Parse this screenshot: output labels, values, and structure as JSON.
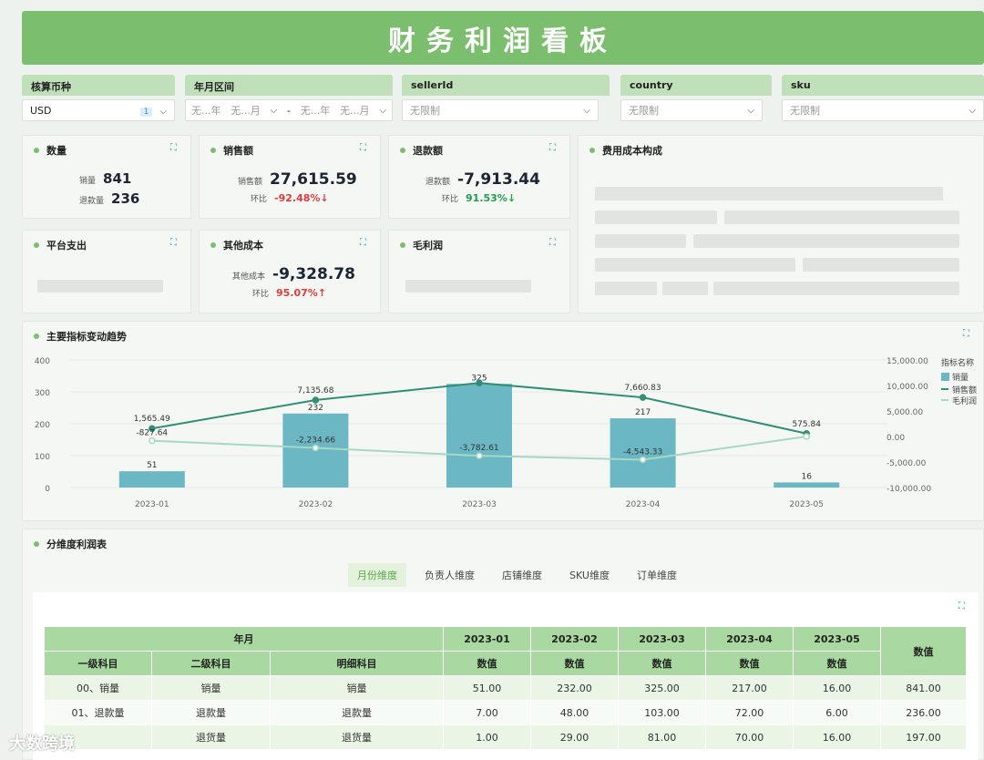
{
  "title": "财务利润看板",
  "filters": [
    {
      "label": "核算币种",
      "value": "USD",
      "badge": "1"
    },
    {
      "label": "年月区间",
      "from_year": "无...年",
      "from_month": "无...月",
      "sep": "-",
      "to_year": "无...年",
      "to_month": "无...月"
    },
    {
      "label": "sellerId",
      "placeholder": "无限制"
    },
    {
      "label": "country",
      "placeholder": "无限制"
    },
    {
      "label": "sku",
      "placeholder": "无限制"
    }
  ],
  "cards": {
    "quantity": {
      "title": "数量",
      "sales_label": "销量",
      "sales_value": "841",
      "refund_label": "退款量",
      "refund_value": "236"
    },
    "revenue": {
      "title": "销售额",
      "label": "销售额",
      "value": "27,615.59",
      "mom_label": "环比",
      "mom_value": "-92.48%",
      "mom_arrow": "↓"
    },
    "refund": {
      "title": "退款额",
      "label": "退款额",
      "value": "-7,913.44",
      "mom_label": "环比",
      "mom_value": "91.53%",
      "mom_arrow": "↓"
    },
    "cost_structure": {
      "title": "费用成本构成"
    },
    "platform": {
      "title": "平台支出"
    },
    "other_cost": {
      "title": "其他成本",
      "label": "其他成本",
      "value": "-9,328.78",
      "mom_label": "环比",
      "mom_value": "95.07%",
      "mom_arrow": "↑"
    },
    "gross_profit": {
      "title": "毛利润"
    }
  },
  "chart_title": "主要指标变动趋势",
  "chart_data": {
    "type": "bar",
    "categories": [
      "2023-01",
      "2023-02",
      "2023-03",
      "2023-04",
      "2023-05"
    ],
    "series": [
      {
        "name": "销量",
        "kind": "bar",
        "axis": "left",
        "values": [
          51,
          232,
          325,
          217,
          16
        ],
        "labels": [
          "51",
          "232",
          "325",
          "217",
          "16"
        ],
        "color": "#6bb8c4"
      },
      {
        "name": "销售额",
        "kind": "line",
        "axis": "right",
        "values": [
          1565.49,
          7135.68,
          10500,
          7660.83,
          575.84
        ],
        "labels": [
          "1,565.49",
          "7,135.68",
          "",
          "7,660.83",
          "575.84"
        ],
        "color": "#2f8f76"
      },
      {
        "name": "毛利润",
        "kind": "line",
        "axis": "right",
        "values": [
          -827.64,
          -2234.66,
          -3782.61,
          -4543.33,
          0
        ],
        "labels": [
          "-827.64",
          "-2,234.66",
          "-3,782.61",
          "-4,543.33",
          ""
        ],
        "color": "#a7d8c4"
      }
    ],
    "left_ticks": [
      "400",
      "300",
      "200",
      "100",
      "0"
    ],
    "right_ticks": [
      "15,000.00",
      "10,000.00",
      "5,000.00",
      "0.00",
      "-5,000.00",
      "-10,000.00"
    ],
    "ylim_left": [
      0,
      400
    ],
    "ylim_right": [
      -10000,
      15000
    ],
    "legend_title": "指标名称",
    "legend_position": "right"
  },
  "table_section": {
    "title": "分维度利润表",
    "tabs": [
      "月份维度",
      "负责人维度",
      "店铺维度",
      "SKU维度",
      "订单维度"
    ],
    "header_group": "年月",
    "col_level1": "一级科目",
    "col_level2": "二级科目",
    "col_detail": "明细科目",
    "months": [
      "2023-01",
      "2023-02",
      "2023-03",
      "2023-04",
      "2023-05"
    ],
    "value_label": "数值",
    "total_label": "数值",
    "rows": [
      {
        "l1": "00、销量",
        "l2": "销量",
        "detail": "销量",
        "vals": [
          "51.00",
          "232.00",
          "325.00",
          "217.00",
          "16.00"
        ],
        "total": "841.00"
      },
      {
        "l1": "01、退款量",
        "l2": "退款量",
        "detail": "退款量",
        "vals": [
          "7.00",
          "48.00",
          "103.00",
          "72.00",
          "6.00"
        ],
        "total": "236.00"
      },
      {
        "l1": "",
        "l2": "退货量",
        "detail": "退货量",
        "vals": [
          "1.00",
          "29.00",
          "81.00",
          "70.00",
          "16.00"
        ],
        "total": "197.00"
      }
    ]
  },
  "watermark": "大数跨境",
  "colors": {
    "accent": "#7bbf6e",
    "header_green": "#a9d9a0",
    "up": "#e23b3b",
    "down": "#1e9e50"
  }
}
